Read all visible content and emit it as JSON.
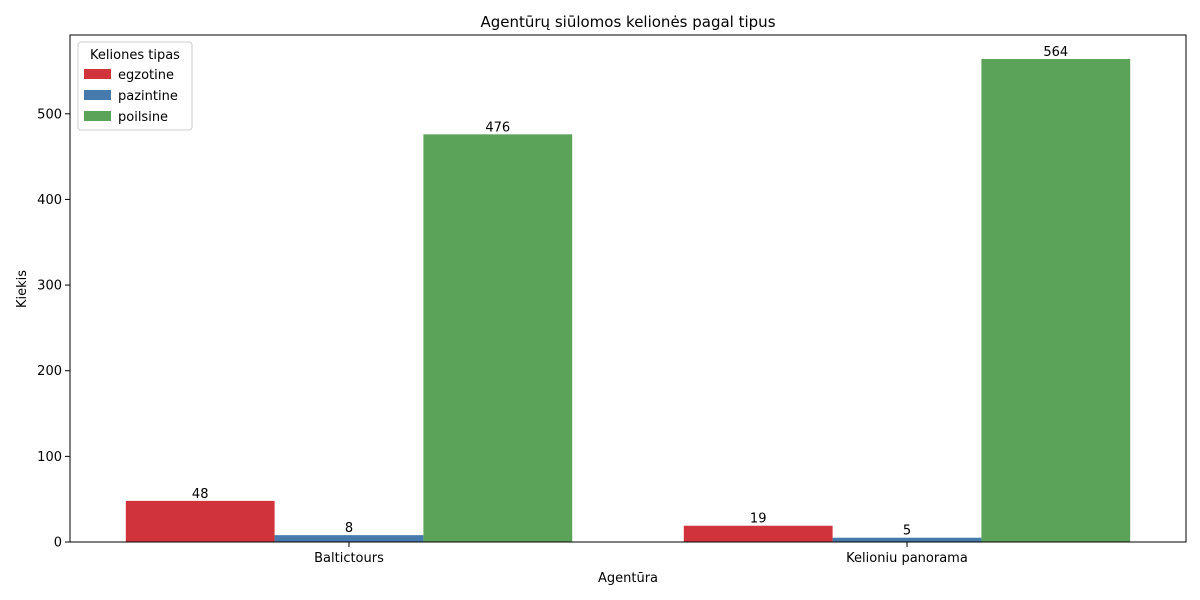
{
  "chart_data": {
    "type": "bar",
    "title": "Agentūrų siūlomos kelionės pagal tipus",
    "xlabel": "Agentūra",
    "ylabel": "Kiekis",
    "categories": [
      "Baltictours",
      "Kelioniu panorama"
    ],
    "series": [
      {
        "name": "egzotine",
        "values": [
          48,
          19
        ],
        "color": "#d1333a"
      },
      {
        "name": "pazintine",
        "values": [
          8,
          5
        ],
        "color": "#4679ac"
      },
      {
        "name": "poilsine",
        "values": [
          476,
          564
        ],
        "color": "#5ba358"
      }
    ],
    "ylim": [
      0,
      592
    ],
    "yticks": [
      0,
      100,
      200,
      300,
      400,
      500
    ],
    "legend": {
      "title": "Keliones tipas",
      "position": "top-left"
    },
    "grid": false,
    "data_labels": true
  }
}
